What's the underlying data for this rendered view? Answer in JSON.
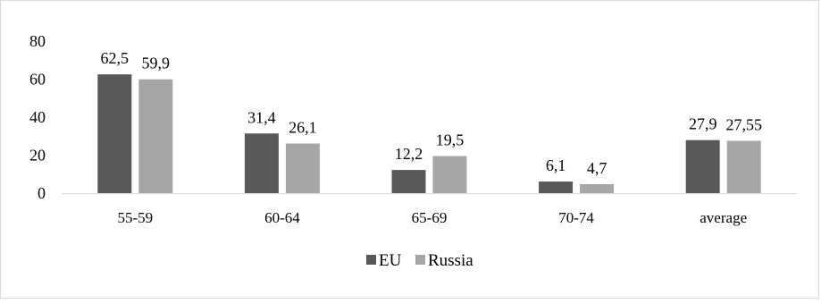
{
  "chart_data": {
    "type": "bar",
    "categories": [
      "55-59",
      "60-64",
      "65-69",
      "70-74",
      "average"
    ],
    "series": [
      {
        "name": "EU",
        "values": [
          62.5,
          31.4,
          12.2,
          6.1,
          27.9
        ],
        "labels": [
          "62,5",
          "31,4",
          "12,2",
          "6,1",
          "27,9"
        ]
      },
      {
        "name": "Russia",
        "values": [
          59.9,
          26.1,
          19.5,
          4.7,
          27.55
        ],
        "labels": [
          "59,9",
          "26,1",
          "19,5",
          "4,7",
          "27,55"
        ]
      }
    ],
    "yticks": [
      "0",
      "20",
      "40",
      "60",
      "80"
    ],
    "ylim": [
      0,
      80
    ],
    "grid": false,
    "legend": "bottom",
    "colors": {
      "EU": "#595959",
      "Russia": "#a6a6a6",
      "axis": "#d9d9d9"
    }
  }
}
